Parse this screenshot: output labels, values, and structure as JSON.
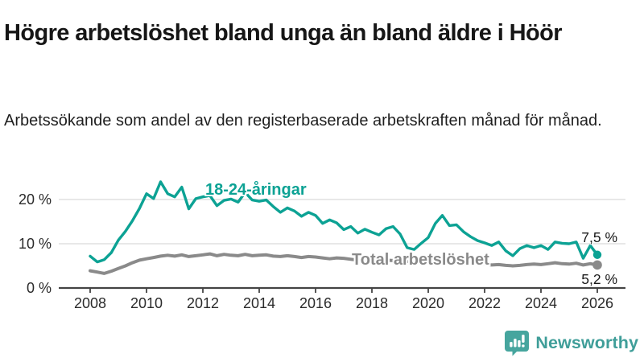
{
  "header": {
    "title": "Högre arbetslöshet bland unga än bland äldre i Höör",
    "subtitle": "Arbetssökande som andel av den registerbaserade arbetskraften månad för månad."
  },
  "chart_data": {
    "type": "line",
    "title": "Högre arbetslöshet bland unga än bland äldre i Höör",
    "subtitle": "Arbetssökande som andel av den registerbaserade arbetskraften månad för månad.",
    "xlabel": "",
    "ylabel": "",
    "grid": "horizontal-only",
    "legend_position": "inline-labels",
    "xlim": [
      2007.9,
      2026.9
    ],
    "ylim": [
      0,
      25
    ],
    "ytick_values": [
      0,
      10,
      20
    ],
    "ytick_labels": [
      "0 %",
      "10 %",
      "20 %"
    ],
    "xtick_values": [
      2008,
      2010,
      2012,
      2014,
      2016,
      2018,
      2020,
      2022,
      2024,
      2026
    ],
    "xtick_labels": [
      "2008",
      "2010",
      "2012",
      "2014",
      "2016",
      "2018",
      "2020",
      "2022",
      "2024",
      "2026"
    ],
    "x": [
      2008,
      2008.25,
      2008.5,
      2008.75,
      2009,
      2009.25,
      2009.5,
      2009.75,
      2010,
      2010.25,
      2010.5,
      2010.75,
      2011,
      2011.25,
      2011.5,
      2011.75,
      2012,
      2012.25,
      2012.5,
      2012.75,
      2013,
      2013.25,
      2013.5,
      2013.75,
      2014,
      2014.25,
      2014.5,
      2014.75,
      2015,
      2015.25,
      2015.5,
      2015.75,
      2016,
      2016.25,
      2016.5,
      2016.75,
      2017,
      2017.25,
      2017.5,
      2017.75,
      2018,
      2018.25,
      2018.5,
      2018.75,
      2019,
      2019.25,
      2019.5,
      2019.75,
      2020,
      2020.25,
      2020.5,
      2020.75,
      2021,
      2021.25,
      2021.5,
      2021.75,
      2022,
      2022.25,
      2022.5,
      2022.75,
      2023,
      2023.25,
      2023.5,
      2023.75,
      2024,
      2024.25,
      2024.5,
      2024.75,
      2025,
      2025.25,
      2025.5,
      2025.75,
      2026
    ],
    "series": [
      {
        "name": "18-24-åringar",
        "color": "#0ca294",
        "stroke_width": 3.4,
        "end_label": "7,5 %",
        "end_value": 7.5,
        "values": [
          7.2,
          5.9,
          6.4,
          8.0,
          10.8,
          12.8,
          15.2,
          18.0,
          21.3,
          20.2,
          24.0,
          21.3,
          20.6,
          22.8,
          17.9,
          20.2,
          20.6,
          20.9,
          18.6,
          19.8,
          20.1,
          19.4,
          21.6,
          19.9,
          19.6,
          19.9,
          18.4,
          17.1,
          18.1,
          17.4,
          16.2,
          17.1,
          16.4,
          14.6,
          15.4,
          14.7,
          13.2,
          13.9,
          12.4,
          13.3,
          12.6,
          12.0,
          13.4,
          13.9,
          12.2,
          9.1,
          8.7,
          10.1,
          11.4,
          14.6,
          16.4,
          14.1,
          14.3,
          12.7,
          11.6,
          10.7,
          10.2,
          9.6,
          10.4,
          8.4,
          7.3,
          8.9,
          9.6,
          9.1,
          9.6,
          8.7,
          10.4,
          10.1,
          10.0,
          10.4,
          6.7,
          9.6,
          7.5
        ]
      },
      {
        "name": "Total arbetslöshet",
        "color": "#8a8a8a",
        "stroke_width": 4,
        "end_label": "5,2 %",
        "end_value": 5.2,
        "values": [
          3.9,
          3.6,
          3.3,
          3.8,
          4.4,
          5.0,
          5.7,
          6.3,
          6.6,
          6.9,
          7.2,
          7.4,
          7.2,
          7.5,
          7.1,
          7.3,
          7.5,
          7.7,
          7.3,
          7.6,
          7.4,
          7.3,
          7.6,
          7.3,
          7.4,
          7.5,
          7.2,
          7.1,
          7.3,
          7.1,
          6.9,
          7.1,
          7.0,
          6.8,
          6.6,
          6.8,
          6.7,
          6.5,
          6.3,
          6.5,
          6.3,
          6.1,
          6.3,
          6.2,
          6.1,
          6.0,
          6.2,
          5.9,
          6.0,
          6.4,
          6.6,
          6.3,
          6.4,
          6.1,
          5.9,
          5.6,
          5.4,
          5.2,
          5.3,
          5.1,
          5.0,
          5.1,
          5.3,
          5.4,
          5.3,
          5.5,
          5.7,
          5.5,
          5.4,
          5.6,
          5.2,
          5.5,
          5.2
        ]
      }
    ],
    "colors": {
      "gridline": "#e0e0e0",
      "axis": "#444444",
      "tick_text": "#2b2b2b"
    }
  },
  "logo": {
    "brand": "Newsworthy",
    "icon": "bar-chart-speech-bubble-icon",
    "color": "#3f9e99",
    "icon_color": "#46a59e"
  }
}
